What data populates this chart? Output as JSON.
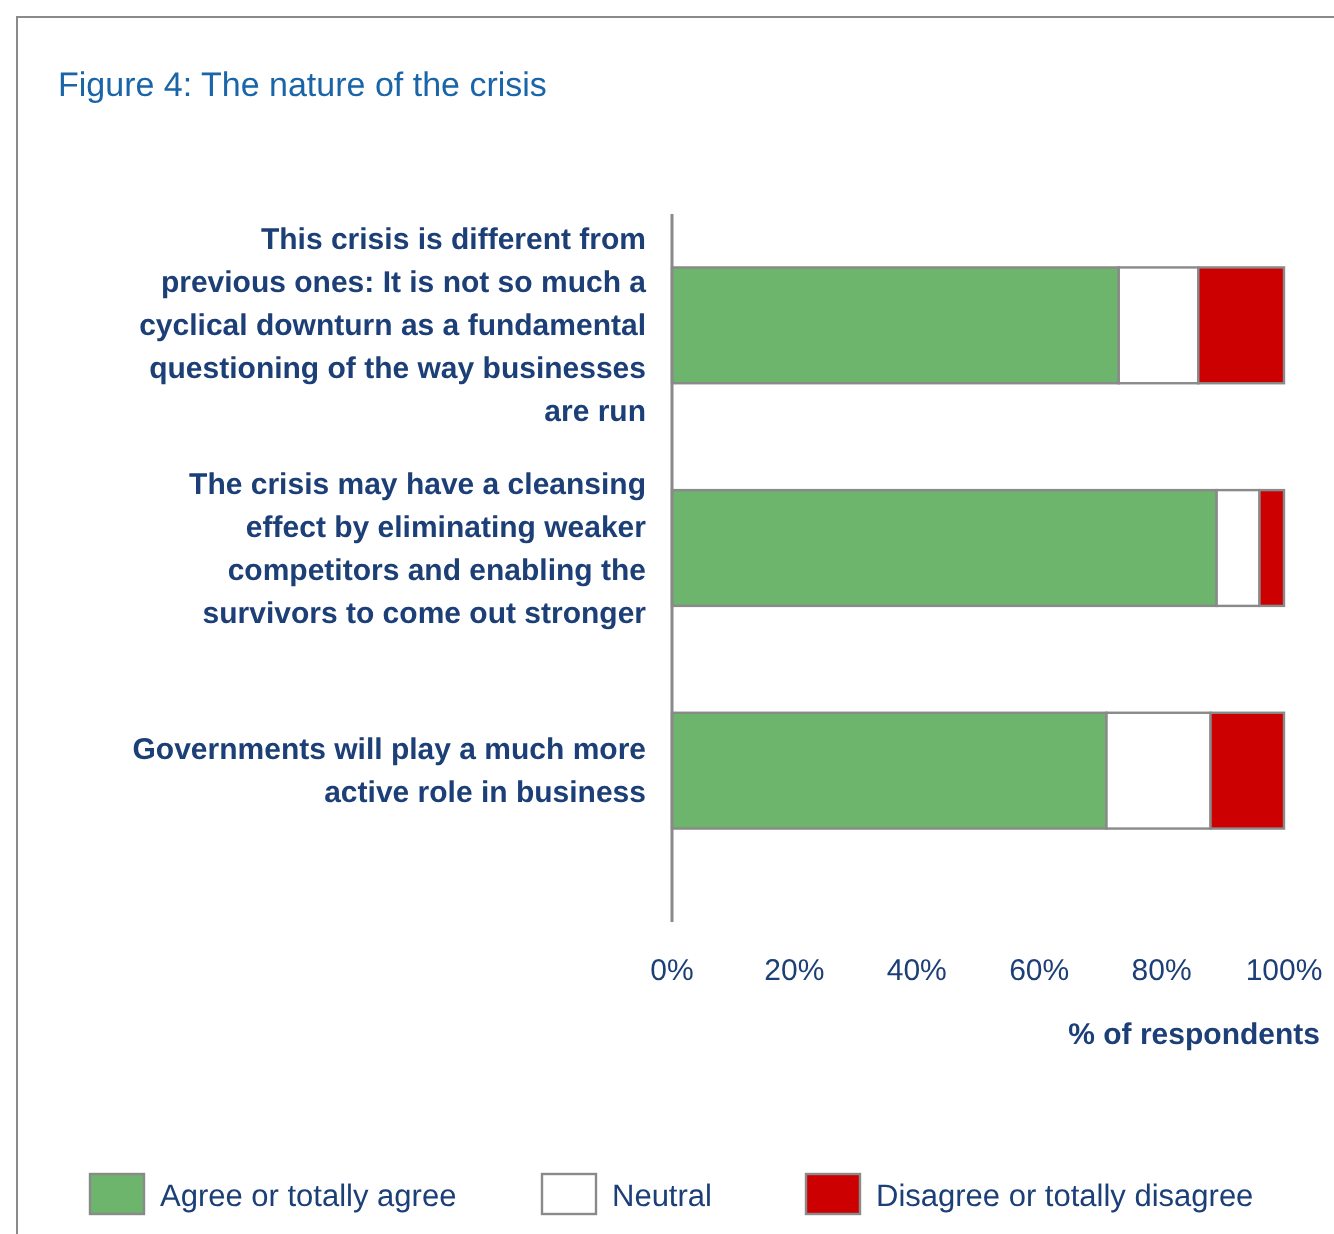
{
  "chart_data": {
    "type": "bar",
    "orientation": "horizontal",
    "stacked": true,
    "title": "Figure 4: The nature of the crisis",
    "xlabel": "% of respondents",
    "categories": [
      "This crisis is different from previous ones: It is not so much a cyclical downturn as a fundamental questioning of the way businesses are run",
      "The crisis may have a cleansing effect by eliminating weaker competitors and enabling the survivors to come out stronger",
      "Governments will play a much more active role in business"
    ],
    "series": [
      {
        "name": "Agree or totally agree",
        "color": "#6db56d",
        "values": [
          73,
          89,
          71
        ]
      },
      {
        "name": "Neutral",
        "color": "#ffffff",
        "values": [
          13,
          7,
          17
        ]
      },
      {
        "name": "Disagree or totally disagree",
        "color": "#cc0000",
        "values": [
          14,
          4,
          12
        ]
      }
    ],
    "xlim": [
      0,
      100
    ],
    "xticks": [
      {
        "value": 0,
        "label": "0%"
      },
      {
        "value": 20,
        "label": "20%"
      },
      {
        "value": 40,
        "label": "40%"
      },
      {
        "value": 60,
        "label": "60%"
      },
      {
        "value": 80,
        "label": "80%"
      },
      {
        "value": 100,
        "label": "100%"
      }
    ],
    "grid": false,
    "legend": "bottom"
  }
}
